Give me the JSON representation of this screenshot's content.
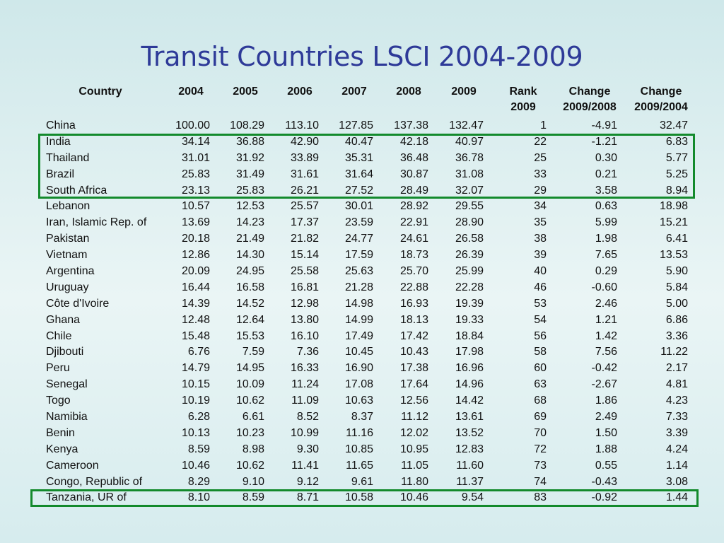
{
  "title": "Transit Countries LSCI 2004-2009",
  "header": {
    "country": "Country",
    "y2004": "2004",
    "y2005": "2005",
    "y2006": "2006",
    "y2007": "2007",
    "y2008": "2008",
    "y2009": "2009",
    "rank_line1": "Rank",
    "rank_line2": "2009",
    "chg1_line1": "Change",
    "chg1_line2": "2009/2008",
    "chg2_line1": "Change",
    "chg2_line2": "2009/2004"
  },
  "highlight_color": "#138a2c",
  "rows": [
    [
      "China",
      "100.00",
      "108.29",
      "113.10",
      "127.85",
      "137.38",
      "132.47",
      "1",
      "-4.91",
      "32.47"
    ],
    [
      "India",
      "34.14",
      "36.88",
      "42.90",
      "40.47",
      "42.18",
      "40.97",
      "22",
      "-1.21",
      "6.83"
    ],
    [
      "Thailand",
      "31.01",
      "31.92",
      "33.89",
      "35.31",
      "36.48",
      "36.78",
      "25",
      "0.30",
      "5.77"
    ],
    [
      "Brazil",
      "25.83",
      "31.49",
      "31.61",
      "31.64",
      "30.87",
      "31.08",
      "33",
      "0.21",
      "5.25"
    ],
    [
      "South Africa",
      "23.13",
      "25.83",
      "26.21",
      "27.52",
      "28.49",
      "32.07",
      "29",
      "3.58",
      "8.94"
    ],
    [
      "Lebanon",
      "10.57",
      "12.53",
      "25.57",
      "30.01",
      "28.92",
      "29.55",
      "34",
      "0.63",
      "18.98"
    ],
    [
      "Iran, Islamic Rep. of",
      "13.69",
      "14.23",
      "17.37",
      "23.59",
      "22.91",
      "28.90",
      "35",
      "5.99",
      "15.21"
    ],
    [
      "Pakistan",
      "20.18",
      "21.49",
      "21.82",
      "24.77",
      "24.61",
      "26.58",
      "38",
      "1.98",
      "6.41"
    ],
    [
      "Vietnam",
      "12.86",
      "14.30",
      "15.14",
      "17.59",
      "18.73",
      "26.39",
      "39",
      "7.65",
      "13.53"
    ],
    [
      "Argentina",
      "20.09",
      "24.95",
      "25.58",
      "25.63",
      "25.70",
      "25.99",
      "40",
      "0.29",
      "5.90"
    ],
    [
      "Uruguay",
      "16.44",
      "16.58",
      "16.81",
      "21.28",
      "22.88",
      "22.28",
      "46",
      "-0.60",
      "5.84"
    ],
    [
      "Côte d'Ivoire",
      "14.39",
      "14.52",
      "12.98",
      "14.98",
      "16.93",
      "19.39",
      "53",
      "2.46",
      "5.00"
    ],
    [
      "Ghana",
      "12.48",
      "12.64",
      "13.80",
      "14.99",
      "18.13",
      "19.33",
      "54",
      "1.21",
      "6.86"
    ],
    [
      "Chile",
      "15.48",
      "15.53",
      "16.10",
      "17.49",
      "17.42",
      "18.84",
      "56",
      "1.42",
      "3.36"
    ],
    [
      "Djibouti",
      "6.76",
      "7.59",
      "7.36",
      "10.45",
      "10.43",
      "17.98",
      "58",
      "7.56",
      "11.22"
    ],
    [
      "Peru",
      "14.79",
      "14.95",
      "16.33",
      "16.90",
      "17.38",
      "16.96",
      "60",
      "-0.42",
      "2.17"
    ],
    [
      "Senegal",
      "10.15",
      "10.09",
      "11.24",
      "17.08",
      "17.64",
      "14.96",
      "63",
      "-2.67",
      "4.81"
    ],
    [
      "Togo",
      "10.19",
      "10.62",
      "11.09",
      "10.63",
      "12.56",
      "14.42",
      "68",
      "1.86",
      "4.23"
    ],
    [
      "Namibia",
      "6.28",
      "6.61",
      "8.52",
      "8.37",
      "11.12",
      "13.61",
      "69",
      "2.49",
      "7.33"
    ],
    [
      "Benin",
      "10.13",
      "10.23",
      "10.99",
      "11.16",
      "12.02",
      "13.52",
      "70",
      "1.50",
      "3.39"
    ],
    [
      "Kenya",
      "8.59",
      "8.98",
      "9.30",
      "10.85",
      "10.95",
      "12.83",
      "72",
      "1.88",
      "4.24"
    ],
    [
      "Cameroon",
      "10.46",
      "10.62",
      "11.41",
      "11.65",
      "11.05",
      "11.60",
      "73",
      "0.55",
      "1.14"
    ],
    [
      "Congo, Republic of",
      "8.29",
      "9.10",
      "9.12",
      "9.61",
      "11.80",
      "11.37",
      "74",
      "-0.43",
      "3.08"
    ],
    [
      "Tanzania, UR of",
      "8.10",
      "8.59",
      "8.71",
      "10.58",
      "10.46",
      "9.54",
      "83",
      "-0.92",
      "1.44"
    ]
  ]
}
